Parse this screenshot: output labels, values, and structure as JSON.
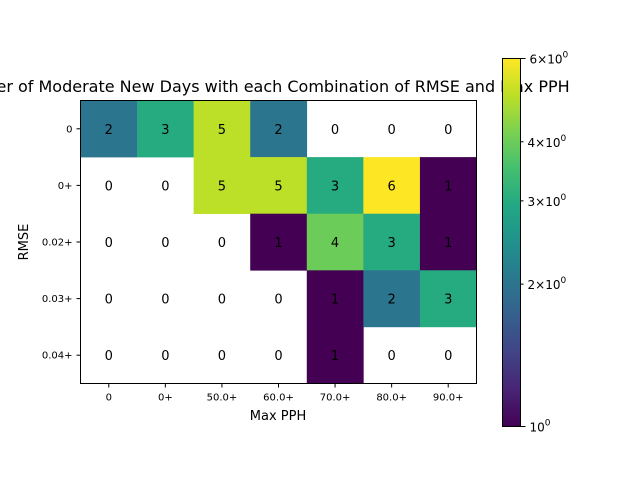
{
  "chart_data": {
    "type": "heatmap",
    "title": "ber of Moderate New Days with each Combination of RMSE and Max PPH",
    "xlabel": "Max PPH",
    "ylabel": "RMSE",
    "x_categories": [
      "0",
      "0+",
      "50.0+",
      "60.0+",
      "70.0+",
      "80.0+",
      "90.0+"
    ],
    "y_categories": [
      "0",
      "0+",
      "0.02+",
      "0.03+",
      "0.04+"
    ],
    "values": [
      [
        2,
        3,
        5,
        2,
        0,
        0,
        0
      ],
      [
        0,
        0,
        5,
        5,
        3,
        6,
        1
      ],
      [
        0,
        0,
        0,
        1,
        4,
        3,
        1
      ],
      [
        0,
        0,
        0,
        0,
        1,
        2,
        3
      ],
      [
        0,
        0,
        0,
        0,
        1,
        0,
        0
      ]
    ],
    "zero_cells_blank": true,
    "colorbar": {
      "scale": "log",
      "range": [
        1,
        6
      ],
      "colormap": "viridis",
      "major_ticks": [
        {
          "value": 1,
          "label": "10^0"
        },
        {
          "value": 6,
          "label": "6×10^0"
        }
      ],
      "minor_ticks": [
        {
          "value": 2,
          "label": "2×10^0"
        },
        {
          "value": 3,
          "label": "3×10^0"
        },
        {
          "value": 4,
          "label": "4×10^0"
        }
      ]
    }
  }
}
